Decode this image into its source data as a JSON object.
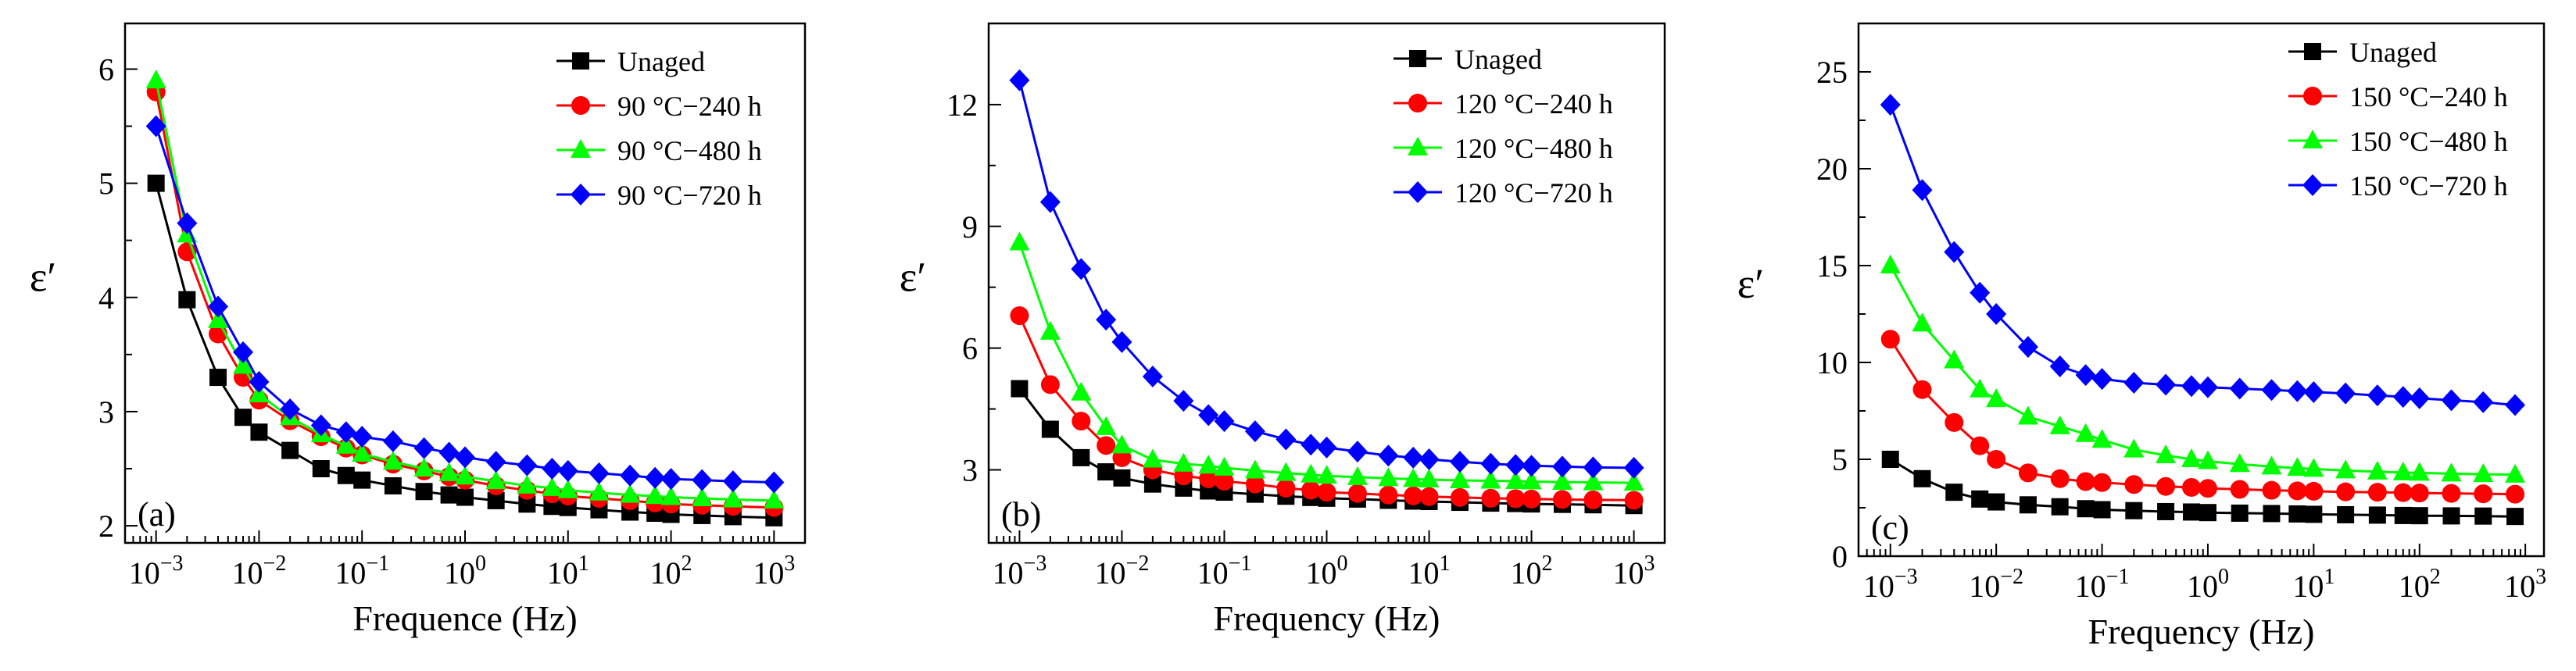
{
  "chart_data": [
    {
      "type": "line",
      "panel_label": "(a)",
      "xlabel": "Frequence (Hz)",
      "ylabel": "ε′",
      "x_scale": "log",
      "xlim": [
        0.0005,
        2000
      ],
      "ylim": [
        1.85,
        6.4
      ],
      "x_ticks": [
        0.001,
        0.01,
        0.1,
        1,
        10,
        100,
        1000
      ],
      "x_tick_labels": [
        [
          "10",
          "−3"
        ],
        [
          "10",
          "−2"
        ],
        [
          "10",
          "−1"
        ],
        [
          "10",
          "0"
        ],
        [
          "10",
          "1"
        ],
        [
          "10",
          "2"
        ],
        [
          "10",
          "3"
        ]
      ],
      "y_ticks": [
        2,
        3,
        4,
        5,
        6
      ],
      "y_tick_labels": [
        "2",
        "3",
        "4",
        "5",
        "6"
      ],
      "legend": "top-right",
      "x": [
        0.001,
        0.002,
        0.004,
        0.007,
        0.01,
        0.02,
        0.04,
        0.07,
        0.1,
        0.2,
        0.4,
        0.7,
        1,
        2,
        4,
        7,
        10,
        20,
        40,
        70,
        100,
        200,
        400,
        1000
      ],
      "series": [
        {
          "name": "Unaged",
          "color": "#000000",
          "marker": "square",
          "values": [
            5.0,
            3.98,
            3.3,
            2.95,
            2.82,
            2.66,
            2.5,
            2.44,
            2.4,
            2.35,
            2.3,
            2.27,
            2.25,
            2.22,
            2.19,
            2.17,
            2.16,
            2.14,
            2.12,
            2.11,
            2.1,
            2.09,
            2.08,
            2.07
          ]
        },
        {
          "name": "90 °C−240 h",
          "color": "#ff0000",
          "marker": "circle",
          "values": [
            5.8,
            4.4,
            3.68,
            3.3,
            3.1,
            2.92,
            2.78,
            2.68,
            2.62,
            2.54,
            2.48,
            2.43,
            2.4,
            2.35,
            2.31,
            2.28,
            2.26,
            2.24,
            2.22,
            2.2,
            2.19,
            2.18,
            2.17,
            2.16
          ]
        },
        {
          "name": "90 °C−480 h",
          "color": "#00ff00",
          "marker": "triangle",
          "values": [
            5.9,
            4.55,
            3.8,
            3.4,
            3.15,
            2.95,
            2.8,
            2.7,
            2.63,
            2.56,
            2.5,
            2.46,
            2.43,
            2.39,
            2.35,
            2.33,
            2.31,
            2.29,
            2.27,
            2.26,
            2.25,
            2.24,
            2.23,
            2.22
          ]
        },
        {
          "name": "90 °C−720 h",
          "color": "#0000ff",
          "marker": "diamond",
          "values": [
            5.5,
            4.65,
            3.92,
            3.52,
            3.26,
            3.02,
            2.88,
            2.82,
            2.78,
            2.74,
            2.68,
            2.64,
            2.6,
            2.56,
            2.53,
            2.5,
            2.48,
            2.46,
            2.44,
            2.42,
            2.41,
            2.4,
            2.39,
            2.38
          ]
        }
      ]
    },
    {
      "type": "line",
      "panel_label": "(b)",
      "xlabel": "Frequency (Hz)",
      "ylabel": "ε′",
      "x_scale": "log",
      "xlim": [
        0.0005,
        2000
      ],
      "ylim": [
        1.2,
        14.0
      ],
      "x_ticks": [
        0.001,
        0.01,
        0.1,
        1,
        10,
        100,
        1000
      ],
      "x_tick_labels": [
        [
          "10",
          "−3"
        ],
        [
          "10",
          "−2"
        ],
        [
          "10",
          "−1"
        ],
        [
          "10",
          "0"
        ],
        [
          "10",
          "1"
        ],
        [
          "10",
          "2"
        ],
        [
          "10",
          "3"
        ]
      ],
      "y_ticks": [
        3,
        6,
        9,
        12
      ],
      "y_tick_labels": [
        "3",
        "6",
        "9",
        "12"
      ],
      "legend": "top-right",
      "x": [
        0.001,
        0.002,
        0.004,
        0.007,
        0.01,
        0.02,
        0.04,
        0.07,
        0.1,
        0.2,
        0.4,
        0.7,
        1,
        2,
        4,
        7,
        10,
        20,
        40,
        70,
        100,
        200,
        400,
        1000
      ],
      "series": [
        {
          "name": "Unaged",
          "color": "#000000",
          "marker": "square",
          "values": [
            5.0,
            4.0,
            3.3,
            2.95,
            2.8,
            2.65,
            2.55,
            2.48,
            2.45,
            2.4,
            2.35,
            2.32,
            2.3,
            2.28,
            2.25,
            2.23,
            2.22,
            2.2,
            2.18,
            2.17,
            2.16,
            2.15,
            2.14,
            2.12
          ]
        },
        {
          "name": "120 °C−240 h",
          "color": "#ff0000",
          "marker": "circle",
          "values": [
            6.8,
            5.1,
            4.2,
            3.6,
            3.3,
            3.0,
            2.85,
            2.78,
            2.72,
            2.65,
            2.55,
            2.5,
            2.45,
            2.42,
            2.38,
            2.36,
            2.34,
            2.32,
            2.3,
            2.29,
            2.28,
            2.27,
            2.26,
            2.25
          ]
        },
        {
          "name": "120 °C−480 h",
          "color": "#00ff00",
          "marker": "triangle",
          "values": [
            8.6,
            6.4,
            4.9,
            4.05,
            3.6,
            3.25,
            3.15,
            3.1,
            3.05,
            2.98,
            2.92,
            2.88,
            2.85,
            2.82,
            2.79,
            2.77,
            2.76,
            2.74,
            2.73,
            2.72,
            2.71,
            2.7,
            2.69,
            2.68
          ]
        },
        {
          "name": "120 °C−720 h",
          "color": "#0000ff",
          "marker": "diamond",
          "values": [
            12.6,
            9.6,
            7.95,
            6.7,
            6.15,
            5.3,
            4.7,
            4.35,
            4.2,
            3.95,
            3.75,
            3.62,
            3.55,
            3.45,
            3.35,
            3.3,
            3.26,
            3.2,
            3.15,
            3.12,
            3.1,
            3.08,
            3.06,
            3.05
          ]
        }
      ]
    },
    {
      "type": "line",
      "panel_label": "(c)",
      "xlabel": "Frequency (Hz)",
      "ylabel": "ε′",
      "x_scale": "log",
      "xlim": [
        0.0005,
        1500
      ],
      "ylim": [
        0,
        27.5
      ],
      "x_ticks": [
        0.001,
        0.01,
        0.1,
        1,
        10,
        100,
        1000
      ],
      "x_tick_labels": [
        [
          "10",
          "−3"
        ],
        [
          "10",
          "−2"
        ],
        [
          "10",
          "−1"
        ],
        [
          "10",
          "0"
        ],
        [
          "10",
          "1"
        ],
        [
          "10",
          "2"
        ],
        [
          "10",
          "3"
        ]
      ],
      "y_ticks": [
        0,
        5,
        10,
        15,
        20,
        25
      ],
      "y_tick_labels": [
        "0",
        "5",
        "10",
        "15",
        "20",
        "25"
      ],
      "legend": "top-right",
      "x": [
        0.001,
        0.002,
        0.004,
        0.007,
        0.01,
        0.02,
        0.04,
        0.07,
        0.1,
        0.2,
        0.4,
        0.7,
        1,
        2,
        4,
        7,
        10,
        20,
        40,
        70,
        100,
        200,
        400,
        800
      ],
      "series": [
        {
          "name": "Unaged",
          "color": "#000000",
          "marker": "square",
          "values": [
            5.0,
            4.0,
            3.3,
            2.95,
            2.8,
            2.65,
            2.55,
            2.45,
            2.4,
            2.35,
            2.3,
            2.28,
            2.25,
            2.22,
            2.2,
            2.18,
            2.16,
            2.14,
            2.12,
            2.1,
            2.09,
            2.08,
            2.07,
            2.05
          ]
        },
        {
          "name": "150 °C−240 h",
          "color": "#ff0000",
          "marker": "circle",
          "values": [
            11.2,
            8.6,
            6.9,
            5.7,
            5.0,
            4.3,
            4.0,
            3.85,
            3.8,
            3.7,
            3.6,
            3.55,
            3.5,
            3.45,
            3.4,
            3.37,
            3.35,
            3.32,
            3.3,
            3.28,
            3.26,
            3.24,
            3.22,
            3.2
          ]
        },
        {
          "name": "150 °C−480 h",
          "color": "#00ff00",
          "marker": "triangle",
          "values": [
            15.0,
            12.0,
            10.1,
            8.6,
            8.1,
            7.2,
            6.7,
            6.3,
            6.0,
            5.5,
            5.2,
            5.0,
            4.9,
            4.75,
            4.62,
            4.55,
            4.5,
            4.42,
            4.36,
            4.32,
            4.3,
            4.26,
            4.23,
            4.2
          ]
        },
        {
          "name": "150 °C−720 h",
          "color": "#0000ff",
          "marker": "diamond",
          "values": [
            23.3,
            18.9,
            15.7,
            13.6,
            12.5,
            10.8,
            9.8,
            9.35,
            9.15,
            8.95,
            8.85,
            8.78,
            8.72,
            8.65,
            8.58,
            8.52,
            8.47,
            8.4,
            8.3,
            8.22,
            8.15,
            8.05,
            7.95,
            7.8
          ]
        }
      ]
    }
  ]
}
